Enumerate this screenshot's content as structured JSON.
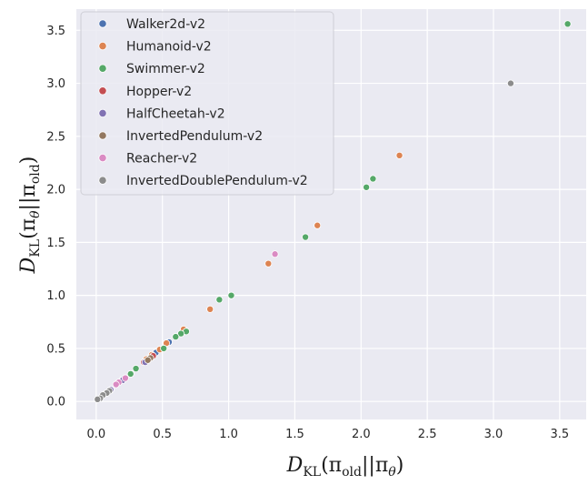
{
  "chart_data": {
    "type": "scatter",
    "title": "",
    "xlabel": "D_KL(π_old||π_θ)",
    "ylabel": "D_KL(π_θ||π_old)",
    "xlim": [
      -0.15,
      3.7
    ],
    "ylim": [
      -0.17,
      3.7
    ],
    "xticks": [
      "0.0",
      "0.5",
      "1.0",
      "1.5",
      "2.0",
      "2.5",
      "3.0",
      "3.5"
    ],
    "yticks": [
      "0.0",
      "0.5",
      "1.0",
      "1.5",
      "2.0",
      "2.5",
      "3.0",
      "3.5"
    ],
    "grid": true,
    "background": "#eaeaf2",
    "legend_position": "top-left",
    "series": [
      {
        "name": "Walker2d-v2",
        "color": "#4c72b0",
        "points": [
          [
            0.4,
            0.41
          ],
          [
            0.45,
            0.46
          ],
          [
            0.55,
            0.56
          ],
          [
            0.2,
            0.21
          ],
          [
            0.6,
            0.61
          ]
        ]
      },
      {
        "name": "Humanoid-v2",
        "color": "#dd8452",
        "points": [
          [
            2.29,
            2.32
          ],
          [
            1.67,
            1.66
          ],
          [
            1.3,
            1.3
          ],
          [
            0.86,
            0.87
          ],
          [
            0.53,
            0.55
          ],
          [
            0.48,
            0.49
          ],
          [
            0.42,
            0.44
          ],
          [
            0.66,
            0.68
          ],
          [
            0.38,
            0.4
          ]
        ]
      },
      {
        "name": "Swimmer-v2",
        "color": "#55a868",
        "points": [
          [
            3.56,
            3.56
          ],
          [
            2.09,
            2.1
          ],
          [
            2.04,
            2.02
          ],
          [
            1.58,
            1.55
          ],
          [
            1.02,
            1.0
          ],
          [
            0.93,
            0.96
          ],
          [
            0.68,
            0.66
          ],
          [
            0.64,
            0.64
          ],
          [
            0.6,
            0.61
          ],
          [
            0.51,
            0.5
          ],
          [
            0.3,
            0.31
          ],
          [
            0.26,
            0.26
          ]
        ]
      },
      {
        "name": "Hopper-v2",
        "color": "#c44e52",
        "points": [
          [
            0.43,
            0.43
          ],
          [
            0.36,
            0.37
          ]
        ]
      },
      {
        "name": "HalfCheetah-v2",
        "color": "#8172b3",
        "points": [
          [
            0.37,
            0.37
          ],
          [
            0.2,
            0.2
          ],
          [
            0.11,
            0.11
          ]
        ]
      },
      {
        "name": "InvertedPendulum-v2",
        "color": "#937860",
        "points": [
          [
            0.41,
            0.41
          ],
          [
            0.39,
            0.39
          ]
        ]
      },
      {
        "name": "Reacher-v2",
        "color": "#da8bc3",
        "points": [
          [
            1.35,
            1.39
          ],
          [
            0.22,
            0.22
          ],
          [
            0.17,
            0.18
          ],
          [
            0.15,
            0.16
          ]
        ]
      },
      {
        "name": "InvertedDoublePendulum-v2",
        "color": "#8c8c8c",
        "points": [
          [
            3.13,
            3.0
          ],
          [
            0.1,
            0.1
          ],
          [
            0.08,
            0.08
          ],
          [
            0.05,
            0.06
          ],
          [
            0.03,
            0.03
          ],
          [
            0.01,
            0.02
          ]
        ]
      }
    ]
  }
}
